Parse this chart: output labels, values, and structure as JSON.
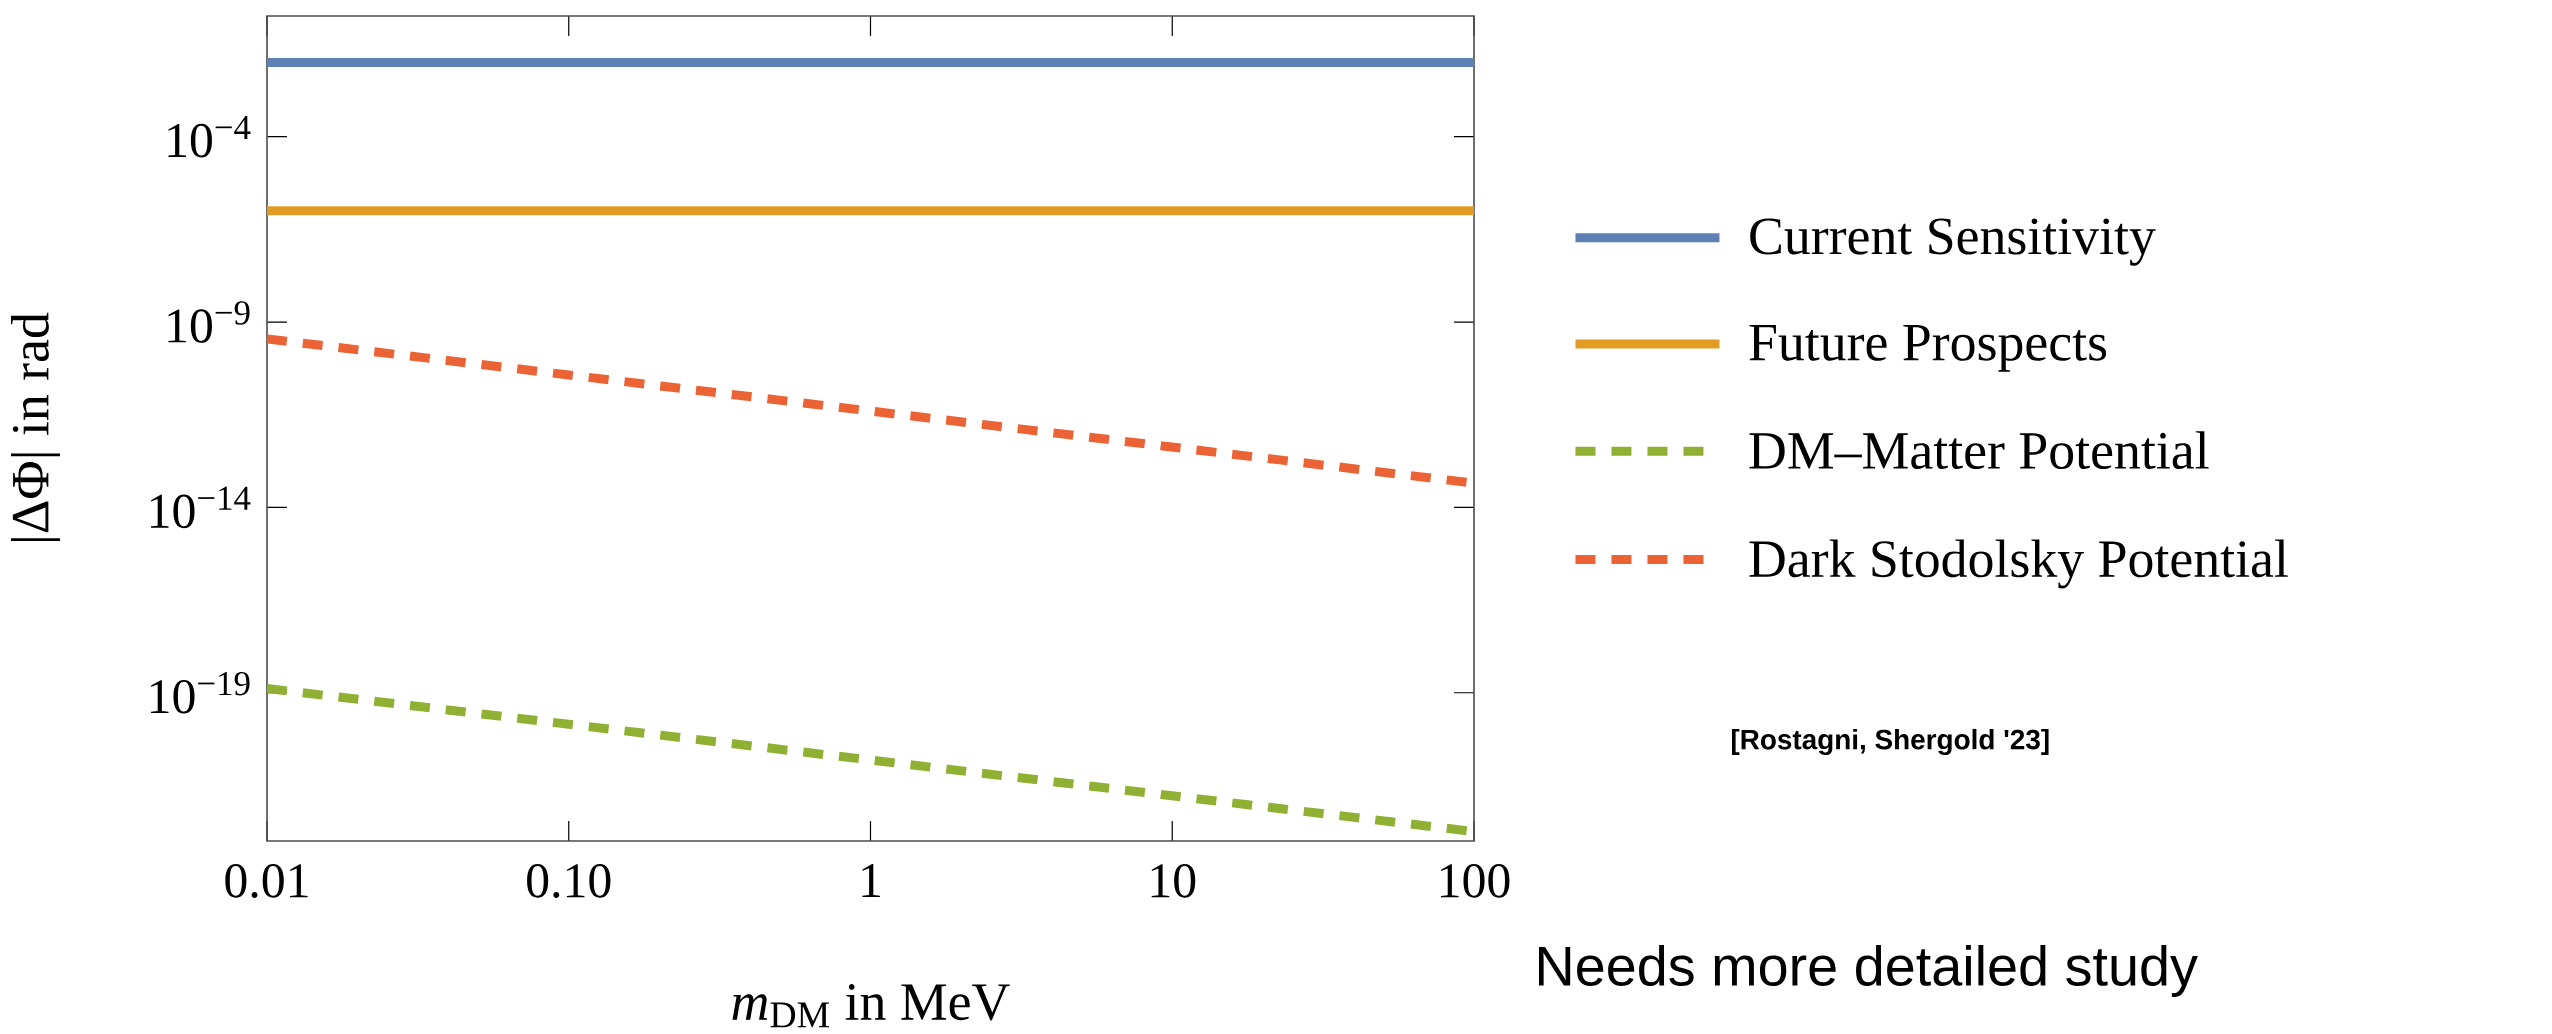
{
  "chart_data": {
    "type": "line",
    "xlabel": "*m*$_{DM}$ in MeV",
    "ylabel": "|ΔΦ| in rad",
    "log": "xy",
    "legend": "right",
    "grid": false,
    "x": [
      0.01,
      100
    ],
    "xlim": [
      0.01,
      100
    ],
    "ylim": [
      1e-23,
      0.18
    ],
    "xticks": [
      {
        "value": 0.01,
        "label": "0.01"
      },
      {
        "value": 0.1,
        "label": "0.10"
      },
      {
        "value": 1,
        "label": "1"
      },
      {
        "value": 10,
        "label": "10"
      },
      {
        "value": 100,
        "label": "100"
      }
    ],
    "yticks": [
      {
        "value": 0.0001,
        "label": "10$^{−4}$"
      },
      {
        "value": 1e-09,
        "label": "10$^{−9}$"
      },
      {
        "value": 1e-14,
        "label": "10$^{−14}$"
      },
      {
        "value": 1e-19,
        "label": "10$^{−19}$"
      }
    ],
    "series": [
      {
        "name": "Current Sensitivity",
        "color": "#5e81b5",
        "line_style": "solid",
        "values": [
          0.01,
          0.01
        ]
      },
      {
        "name": "Future Prospects",
        "color": "#e19c24",
        "line_style": "solid",
        "values": [
          1e-06,
          1e-06
        ]
      },
      {
        "name": "DM–Matter Potential",
        "color": "#8fb032",
        "line_style": "dashed",
        "values": [
          1.3e-19,
          1.8e-23
        ]
      },
      {
        "name": "Dark Stodolsky Potential",
        "color": "#eb6235",
        "line_style": "dashed",
        "values": [
          3.5e-10,
          4.5e-14
        ]
      }
    ],
    "annotations": [
      "[Rostagni, Shergold '23]",
      "Needs more detailed study"
    ]
  }
}
